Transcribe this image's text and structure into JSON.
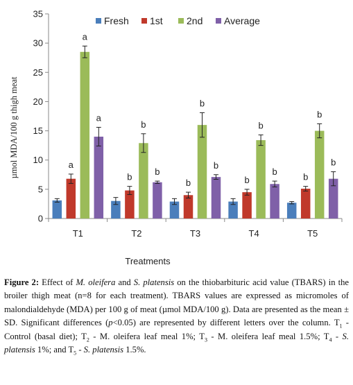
{
  "chart_data": {
    "type": "bar",
    "categories": [
      "T1",
      "T2",
      "T3",
      "T4",
      "T5"
    ],
    "series": [
      {
        "name": "Fresh",
        "color": "#4a7ebb",
        "values": [
          3.1,
          3.0,
          2.9,
          2.9,
          2.7
        ],
        "errors": [
          0.3,
          0.6,
          0.5,
          0.5,
          0.2
        ],
        "letters": [
          "",
          "",
          "",
          "",
          ""
        ]
      },
      {
        "name": "1st",
        "color": "#c0392b",
        "values": [
          6.8,
          4.8,
          4.0,
          4.5,
          5.1
        ],
        "errors": [
          0.8,
          0.7,
          0.5,
          0.5,
          0.4
        ],
        "letters": [
          "a",
          "b",
          "b",
          "b",
          "b"
        ]
      },
      {
        "name": "2nd",
        "color": "#9bbb59",
        "values": [
          28.5,
          12.9,
          16.0,
          13.4,
          15.0
        ],
        "errors": [
          1.0,
          1.6,
          2.1,
          0.9,
          1.2
        ],
        "letters": [
          "a",
          "b",
          "b",
          "b",
          "b"
        ]
      },
      {
        "name": "Average",
        "color": "#7f60a8",
        "values": [
          14.0,
          6.2,
          7.1,
          5.9,
          6.8
        ],
        "errors": [
          1.6,
          0.2,
          0.4,
          0.5,
          1.2
        ],
        "letters": [
          "a",
          "b",
          "b",
          "b",
          "b"
        ]
      }
    ],
    "ylim": [
      0,
      35
    ],
    "yticks": [
      0,
      5,
      10,
      15,
      20,
      25,
      30,
      35
    ],
    "ylabel": "µmol MDA/100 g thigh meat",
    "xlabel": "Treatments",
    "legend_placement": "top",
    "grid": false
  },
  "caption": {
    "label": "Figure 2:",
    "text1": " Effect of ",
    "sp1": "M. oleifera",
    "text2": " and ",
    "sp2": "S. platensis",
    "text3": " on the thiobarbituric acid value (TBARS) in the broiler thigh meat (n=8 for each treatment). TBARS values are expressed as micromoles of malondialdehyde (MDA) per 100 g of meat (µmol MDA/100 g). Data are presented as the mean ± SD. Significant differences (",
    "pval": "p",
    "text4": "<0.05) are represented by different letters over the column. T",
    "sub1": "1",
    "text5": " - Control (basal diet); T",
    "sub2": "2",
    "text6": " - M. oleifera leaf meal 1%; T",
    "sub3": "3",
    "text7": " - M. oleifera leaf meal 1.5%; T",
    "sub4": "4",
    "text8": " - ",
    "sp3": "S. platensis",
    "text9": " 1%; and T",
    "sub5": "5",
    "text10": " - ",
    "sp4": "S. platensis",
    "text11": " 1.5%."
  }
}
